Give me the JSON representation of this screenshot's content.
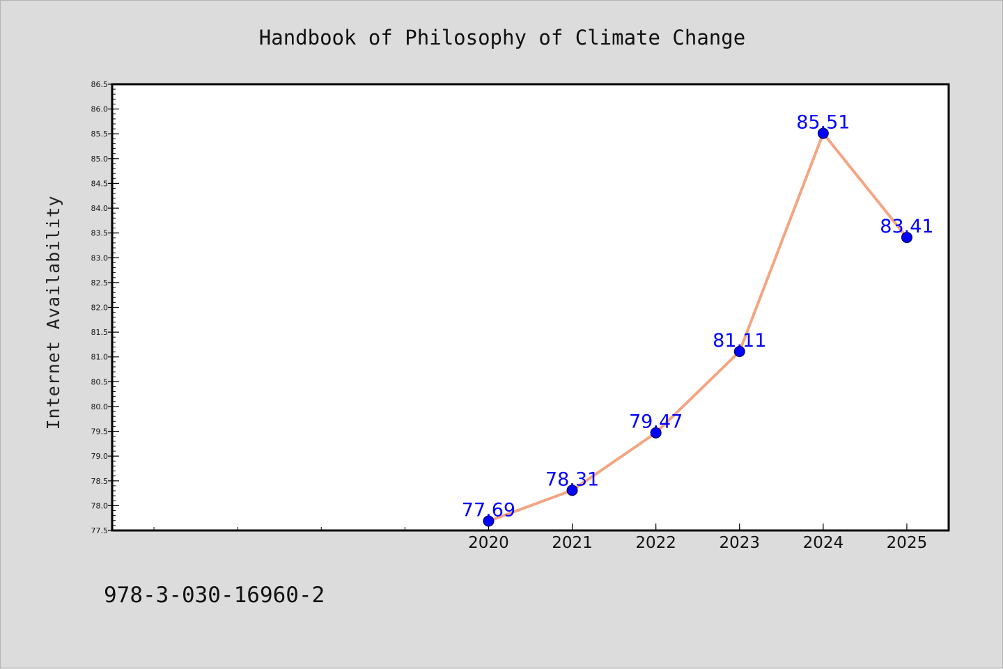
{
  "footer_text": "978-3-030-16960-2",
  "chart_data": {
    "type": "line",
    "title": "Handbook of Philosophy of Climate Change",
    "xlabel": "",
    "ylabel": "Internet Availability",
    "x": [
      2020,
      2021,
      2022,
      2023,
      2024,
      2025
    ],
    "x_tick_labels": [
      "2020",
      "2021",
      "2022",
      "2023",
      "2024",
      "2025"
    ],
    "x_range": [
      2015.5,
      2025.5
    ],
    "series": [
      {
        "values": [
          77.69,
          78.31,
          79.47,
          81.11,
          85.51,
          83.41
        ],
        "labels": [
          "77.69",
          "78.31",
          "79.47",
          "81.11",
          "85.51",
          "83.41"
        ]
      }
    ],
    "ylim": [
      77.5,
      86.5
    ],
    "y_ticks": [
      "77.5",
      "78.0",
      "78.5",
      "79.0",
      "79.5",
      "80.0",
      "80.5",
      "81.0",
      "81.5",
      "82.0",
      "82.5",
      "83.0",
      "83.5",
      "84.0",
      "84.5",
      "85.0",
      "85.5",
      "86.0",
      "86.5"
    ],
    "grid": false,
    "colors": {
      "line": "#f4a582",
      "marker": "#0000ff",
      "label": "#0000ff",
      "plot_bg": "#ffffff",
      "figure_bg": "#dcdcdc"
    }
  }
}
